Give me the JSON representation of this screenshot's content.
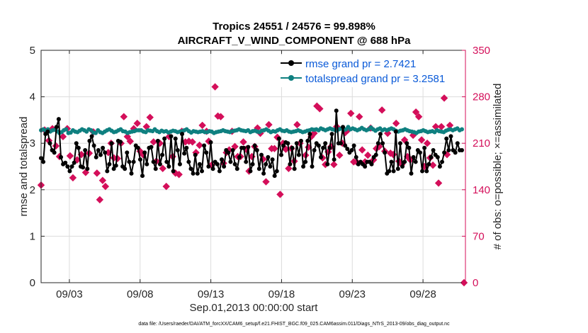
{
  "chart_data": {
    "type": "line",
    "title_line1": "Tropics 24551 / 24576 = 99.898%",
    "title_line2": "AIRCRAFT_V_WIND_COMPONENT @ 688 hPa",
    "xlabel": "Sep.01,2013 00:00:00 start",
    "ylabel_left": "rmse and totalspread",
    "ylabel_right": "# of obs: o=possible; ×=assimilated",
    "xlim": [
      1.0,
      31.0
    ],
    "ylim_left": [
      0,
      5
    ],
    "ylim_right": [
      0,
      350
    ],
    "x_ticks": [
      {
        "x": 3,
        "label": "09/03"
      },
      {
        "x": 8,
        "label": "09/08"
      },
      {
        "x": 13,
        "label": "09/13"
      },
      {
        "x": 18,
        "label": "09/18"
      },
      {
        "x": 23,
        "label": "09/23"
      },
      {
        "x": 28,
        "label": "09/28"
      }
    ],
    "y_ticks_left": [
      "0",
      "1",
      "2",
      "3",
      "4",
      "5"
    ],
    "y_ticks_right": [
      "0",
      "70",
      "140",
      "210",
      "280",
      "350"
    ],
    "grid": true,
    "colors": {
      "rmse": "#000000",
      "spread": "#0f8080",
      "obs": "#d40f5a",
      "right_axis": "#d40f5a",
      "legend_text": "#0a5ad8"
    },
    "legend": [
      {
        "label": "rmse grand pr = 2.7421",
        "series": "rmse"
      },
      {
        "label": "totalspread grand pr = 3.2581",
        "series": "spread"
      }
    ],
    "series": {
      "rmse": [
        2.68,
        2.6,
        3.2,
        3.25,
        3.0,
        2.85,
        2.8,
        3.35,
        3.52,
        2.7,
        2.55,
        2.58,
        2.5,
        2.4,
        2.5,
        2.58,
        3.0,
        2.9,
        2.5,
        2.48,
        2.85,
        2.45,
        3.05,
        3.15,
        2.95,
        2.7,
        2.85,
        2.75,
        2.9,
        2.8,
        2.4,
        2.55,
        3.0,
        2.45,
        2.52,
        3.05,
        3.03,
        2.5,
        2.45,
        2.8,
        2.6,
        2.35,
        2.6,
        2.95,
        2.9,
        2.65,
        2.3,
        2.8,
        2.55,
        2.9,
        2.92,
        2.6,
        2.45,
        3.05,
        2.55,
        2.75,
        3.1,
        2.6,
        2.5,
        3.15,
        2.4,
        3.1,
        2.85,
        2.55,
        3.2,
        2.78,
        2.9,
        2.6,
        2.45,
        2.35,
        2.75,
        2.35,
        2.55,
        2.4,
        2.95,
        2.8,
        2.5,
        3.02,
        2.45,
        2.6,
        2.55,
        2.4,
        2.65,
        2.5,
        2.85,
        2.8,
        2.6,
        2.85,
        2.55,
        2.45,
        2.7,
        2.9,
        2.9,
        2.6,
        2.92,
        2.4,
        2.55,
        2.95,
        2.85,
        2.45,
        2.75,
        2.35,
        2.55,
        2.7,
        2.5,
        2.65,
        2.3,
        2.4,
        3.1,
        2.75,
        2.95,
        3.02,
        3.0,
        2.55,
        2.9,
        2.45,
        3.0,
        2.75,
        3.05,
        2.5,
        2.6,
        3.05,
        3.2,
        2.5,
        2.85,
        3.0,
        2.95,
        2.7,
        2.9,
        3.0,
        2.55,
        2.9,
        3.2,
        2.65,
        3.7,
        3.0,
        3.0,
        3.35,
        2.95,
        2.88,
        2.8,
        2.85,
        2.95,
        2.7,
        2.55,
        2.6,
        2.55,
        2.5,
        2.6,
        2.6,
        2.55,
        2.7,
        2.75,
        3.0,
        3.2,
        3.0,
        2.8,
        2.35,
        2.4,
        2.6,
        2.4,
        3.25,
        2.45,
        3.0,
        2.5,
        2.6,
        3.0,
        2.9,
        2.35,
        2.7,
        2.6,
        2.85,
        2.8,
        2.4,
        2.9,
        2.4,
        2.55,
        2.7,
        2.85,
        2.75,
        2.7,
        2.5,
        2.6,
        2.8,
        3.1,
        2.85,
        3.15,
        2.85,
        2.8,
        3.0,
        2.85,
        2.85
      ],
      "spread": [
        3.28,
        3.3,
        3.27,
        3.3,
        3.25,
        3.28,
        3.29,
        3.26,
        3.22,
        3.24,
        3.28,
        3.3,
        3.22,
        3.23,
        3.28,
        3.25,
        3.24,
        3.27,
        3.3,
        3.28,
        3.25,
        3.3,
        3.28,
        3.23,
        3.22,
        3.28,
        3.24,
        3.22,
        3.25,
        3.28,
        3.3,
        3.27,
        3.24,
        3.25,
        3.28,
        3.3,
        3.26,
        3.25,
        3.22,
        3.24,
        3.25,
        3.26,
        3.28,
        3.28,
        3.28,
        3.25,
        3.24,
        3.28,
        3.27,
        3.26,
        3.3,
        3.26,
        3.24,
        3.27,
        3.25,
        3.26,
        3.23,
        3.25,
        3.27,
        3.26,
        3.24,
        3.25,
        3.26,
        3.28,
        3.3,
        3.26,
        3.23,
        3.26,
        3.25,
        3.24,
        3.25,
        3.26,
        3.24,
        3.24,
        3.26,
        3.25,
        3.22,
        3.24,
        3.25,
        3.26,
        3.28,
        3.26,
        3.25,
        3.24,
        3.26,
        3.27,
        3.28,
        3.3,
        3.28,
        3.27,
        3.26,
        3.28,
        3.24,
        3.26,
        3.27,
        3.25,
        3.24,
        3.27,
        3.28,
        3.3,
        3.27,
        3.24,
        3.26,
        3.25,
        3.28,
        3.3,
        3.27,
        3.26,
        3.28,
        3.25,
        3.24,
        3.25,
        3.26,
        3.28,
        3.26,
        3.24,
        3.25,
        3.27,
        3.28,
        3.3,
        3.29,
        3.3,
        3.28,
        3.32,
        3.3,
        3.28,
        3.3,
        3.32,
        3.3,
        3.29,
        3.27,
        3.3,
        3.32,
        3.28,
        3.3,
        3.35,
        3.3,
        3.32,
        3.3,
        3.28,
        3.3,
        3.33,
        3.3,
        3.28,
        3.3,
        3.34,
        3.3,
        3.27,
        3.3,
        3.32,
        3.28,
        3.3,
        3.28,
        3.3,
        3.32,
        3.3,
        3.27,
        3.25,
        3.27,
        3.28,
        3.3,
        3.28,
        3.26,
        3.25,
        3.24,
        3.22,
        3.25,
        3.26,
        3.28,
        3.26,
        3.24,
        3.25,
        3.26,
        3.24,
        3.28,
        3.26,
        3.25,
        3.24,
        3.27,
        3.29,
        3.3,
        3.28,
        3.3,
        3.32,
        3.28,
        3.3
      ],
      "obs_possible_scatter": [
        {
          "x": 1.0,
          "y": 147
        },
        {
          "x": 1.25,
          "y": 230
        },
        {
          "x": 1.55,
          "y": 214
        },
        {
          "x": 1.8,
          "y": 232
        },
        {
          "x": 2.05,
          "y": 206
        },
        {
          "x": 2.3,
          "y": 190
        },
        {
          "x": 2.55,
          "y": 220
        },
        {
          "x": 2.85,
          "y": 232
        },
        {
          "x": 3.05,
          "y": 191
        },
        {
          "x": 3.25,
          "y": 158
        },
        {
          "x": 3.55,
          "y": 185
        },
        {
          "x": 3.85,
          "y": 193
        },
        {
          "x": 4.15,
          "y": 166
        },
        {
          "x": 4.4,
          "y": 195
        },
        {
          "x": 4.7,
          "y": 227
        },
        {
          "x": 4.95,
          "y": 165
        },
        {
          "x": 5.15,
          "y": 125
        },
        {
          "x": 5.35,
          "y": 154
        },
        {
          "x": 5.55,
          "y": 145
        },
        {
          "x": 5.75,
          "y": 196
        },
        {
          "x": 5.95,
          "y": 210
        },
        {
          "x": 6.15,
          "y": 188
        },
        {
          "x": 6.4,
          "y": 187
        },
        {
          "x": 6.65,
          "y": 210
        },
        {
          "x": 6.85,
          "y": 250
        },
        {
          "x": 7.1,
          "y": 220
        },
        {
          "x": 7.3,
          "y": 213
        },
        {
          "x": 7.55,
          "y": 232
        },
        {
          "x": 7.8,
          "y": 240
        },
        {
          "x": 8.0,
          "y": 198
        },
        {
          "x": 8.2,
          "y": 193
        },
        {
          "x": 8.45,
          "y": 235
        },
        {
          "x": 8.7,
          "y": 249
        },
        {
          "x": 8.95,
          "y": 212
        },
        {
          "x": 9.15,
          "y": 183
        },
        {
          "x": 9.4,
          "y": 210
        },
        {
          "x": 9.6,
          "y": 172
        },
        {
          "x": 9.85,
          "y": 145
        },
        {
          "x": 10.05,
          "y": 220
        },
        {
          "x": 10.3,
          "y": 190
        },
        {
          "x": 10.5,
          "y": 165
        },
        {
          "x": 10.75,
          "y": 163
        },
        {
          "x": 10.95,
          "y": 228
        },
        {
          "x": 11.2,
          "y": 212
        },
        {
          "x": 11.45,
          "y": 213
        },
        {
          "x": 11.7,
          "y": 212
        },
        {
          "x": 11.95,
          "y": 196
        },
        {
          "x": 12.2,
          "y": 207
        },
        {
          "x": 12.4,
          "y": 237
        },
        {
          "x": 12.7,
          "y": 228
        },
        {
          "x": 12.85,
          "y": 213
        },
        {
          "x": 13.05,
          "y": 177
        },
        {
          "x": 13.3,
          "y": 295
        },
        {
          "x": 13.5,
          "y": 251
        },
        {
          "x": 13.7,
          "y": 250
        },
        {
          "x": 13.9,
          "y": 180
        },
        {
          "x": 14.1,
          "y": 196
        },
        {
          "x": 14.3,
          "y": 200
        },
        {
          "x": 14.5,
          "y": 228
        },
        {
          "x": 14.7,
          "y": 205
        },
        {
          "x": 14.9,
          "y": 190
        },
        {
          "x": 15.1,
          "y": 190
        },
        {
          "x": 15.3,
          "y": 212
        },
        {
          "x": 15.5,
          "y": 201
        },
        {
          "x": 15.7,
          "y": 168
        },
        {
          "x": 15.9,
          "y": 190
        },
        {
          "x": 16.1,
          "y": 205
        },
        {
          "x": 16.3,
          "y": 233
        },
        {
          "x": 16.5,
          "y": 225
        },
        {
          "x": 16.7,
          "y": 186
        },
        {
          "x": 16.9,
          "y": 152
        },
        {
          "x": 17.1,
          "y": 238
        },
        {
          "x": 17.3,
          "y": 202
        },
        {
          "x": 17.5,
          "y": 202
        },
        {
          "x": 17.7,
          "y": 219
        },
        {
          "x": 17.9,
          "y": 133
        },
        {
          "x": 18.1,
          "y": 210
        },
        {
          "x": 18.3,
          "y": 201
        },
        {
          "x": 18.5,
          "y": 172
        },
        {
          "x": 18.7,
          "y": 202
        },
        {
          "x": 18.9,
          "y": 183
        },
        {
          "x": 19.1,
          "y": 238
        },
        {
          "x": 19.3,
          "y": 210
        },
        {
          "x": 19.5,
          "y": 300
        },
        {
          "x": 19.7,
          "y": 192
        },
        {
          "x": 19.9,
          "y": 204
        },
        {
          "x": 20.1,
          "y": 220
        },
        {
          "x": 20.3,
          "y": 225
        },
        {
          "x": 20.5,
          "y": 266
        },
        {
          "x": 20.7,
          "y": 262
        },
        {
          "x": 20.9,
          "y": 188
        },
        {
          "x": 21.1,
          "y": 178
        },
        {
          "x": 21.3,
          "y": 197
        },
        {
          "x": 21.5,
          "y": 205
        },
        {
          "x": 21.7,
          "y": 178
        },
        {
          "x": 21.9,
          "y": 235
        },
        {
          "x": 22.1,
          "y": 192
        },
        {
          "x": 22.3,
          "y": 210
        },
        {
          "x": 22.5,
          "y": 226
        },
        {
          "x": 22.7,
          "y": 230
        },
        {
          "x": 22.9,
          "y": 255
        },
        {
          "x": 23.1,
          "y": 182
        },
        {
          "x": 23.3,
          "y": 182
        },
        {
          "x": 23.5,
          "y": 250
        },
        {
          "x": 23.7,
          "y": 200
        },
        {
          "x": 23.9,
          "y": 182
        },
        {
          "x": 24.1,
          "y": 192
        },
        {
          "x": 24.3,
          "y": 233
        },
        {
          "x": 24.5,
          "y": 185
        },
        {
          "x": 24.7,
          "y": 202
        },
        {
          "x": 24.9,
          "y": 205
        },
        {
          "x": 25.1,
          "y": 260
        },
        {
          "x": 25.3,
          "y": 198
        },
        {
          "x": 25.5,
          "y": 225
        },
        {
          "x": 25.7,
          "y": 195
        },
        {
          "x": 25.9,
          "y": 193
        },
        {
          "x": 26.1,
          "y": 240
        },
        {
          "x": 26.3,
          "y": 183
        },
        {
          "x": 26.5,
          "y": 178
        },
        {
          "x": 26.7,
          "y": 215
        },
        {
          "x": 26.9,
          "y": 190
        },
        {
          "x": 27.1,
          "y": 185
        },
        {
          "x": 27.3,
          "y": 222
        },
        {
          "x": 27.5,
          "y": 257
        },
        {
          "x": 27.7,
          "y": 250
        },
        {
          "x": 27.9,
          "y": 215
        },
        {
          "x": 28.1,
          "y": 175
        },
        {
          "x": 28.3,
          "y": 210
        },
        {
          "x": 28.5,
          "y": 188
        },
        {
          "x": 28.7,
          "y": 177
        },
        {
          "x": 28.9,
          "y": 235
        },
        {
          "x": 29.1,
          "y": 150
        },
        {
          "x": 29.3,
          "y": 235
        },
        {
          "x": 29.5,
          "y": 278
        },
        {
          "x": 29.7,
          "y": 193
        },
        {
          "x": 29.9,
          "y": 237
        },
        {
          "x": 30.9,
          "y": 0
        }
      ]
    }
  },
  "footer": {
    "data_file": "data file: /Users/raeder/DAI/ATM_forcXX/CAM6_setup/f.e21.FHIST_BGC.f09_025.CAM6assim.011/Diags_NTrS_2013-09/obs_diag_output.nc"
  }
}
